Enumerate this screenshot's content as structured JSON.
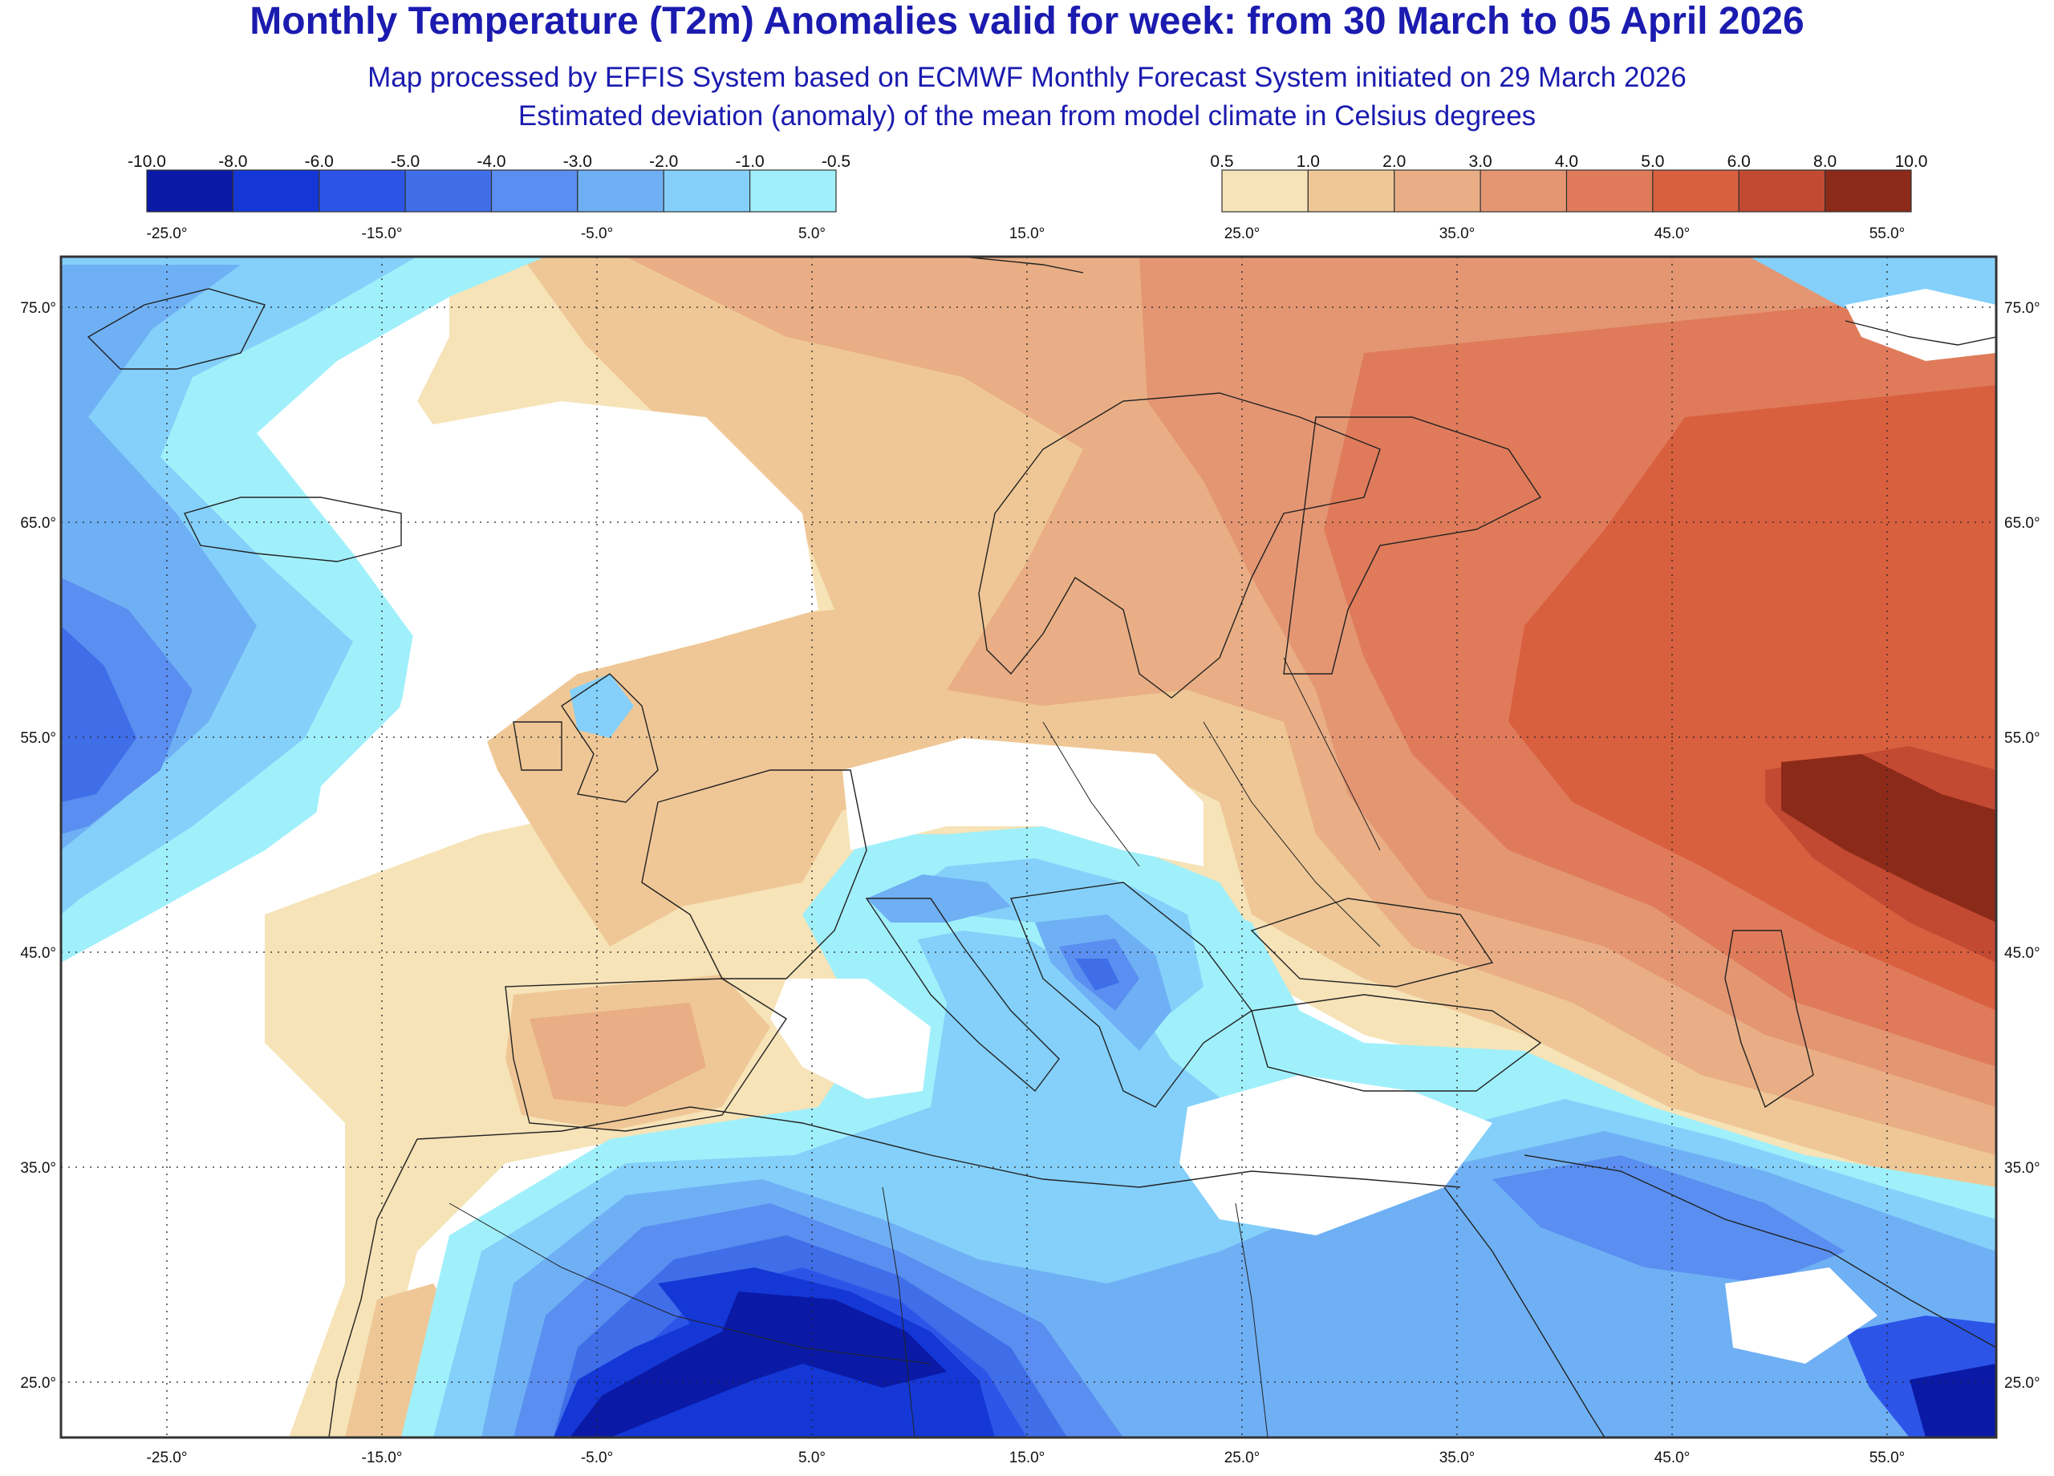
{
  "header": {
    "title": "Monthly Temperature (T2m) Anomalies valid for week: from 30 March to 05 April 2026",
    "subtitle_1": "Map processed by EFFIS System based on ECMWF Monthly Forecast System initiated on 29 March 2026",
    "subtitle_2": "Estimated deviation (anomaly) of the mean from model climate in Celsius degrees"
  },
  "legend_cold": {
    "ticks": [
      "-10.0",
      "-8.0",
      "-6.0",
      "-5.0",
      "-4.0",
      "-3.0",
      "-2.0",
      "-1.0",
      "-0.5"
    ],
    "colors": [
      "#0a1aa6",
      "#1437d6",
      "#2c55e8",
      "#3f6ee8",
      "#5a8ef0",
      "#6fb0f5",
      "#84d0fa",
      "#a0f0fb"
    ]
  },
  "legend_warm": {
    "ticks": [
      "0.5",
      "1.0",
      "2.0",
      "3.0",
      "4.0",
      "5.0",
      "6.0",
      "8.0",
      "10.0"
    ],
    "colors": [
      "#f6e3b7",
      "#efc796",
      "#e9ae85",
      "#e49673",
      "#df7b5a",
      "#d9603f",
      "#c24a32",
      "#8c2a1a"
    ]
  },
  "axes": {
    "lon_labels": [
      "-25.0°",
      "-15.0°",
      "-5.0°",
      "5.0°",
      "15.0°",
      "25.0°",
      "35.0°",
      "45.0°",
      "55.0°"
    ],
    "lat_labels": [
      "75.0°",
      "65.0°",
      "55.0°",
      "45.0°",
      "35.0°",
      "25.0°"
    ]
  }
}
